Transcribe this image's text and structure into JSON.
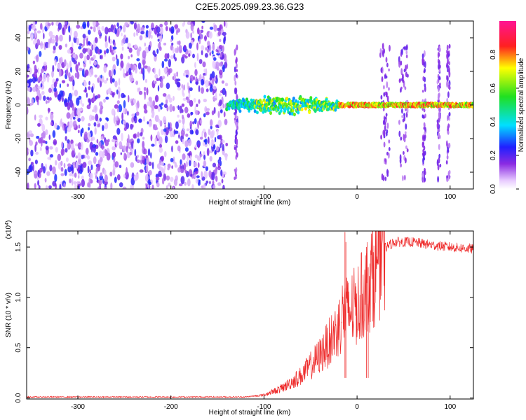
{
  "title": "C2E5.2025.099.23.36.G23",
  "chart_data": [
    {
      "type": "heatmap",
      "xlabel": "Height of straight line (km)",
      "ylabel": "Frequency (Hz)",
      "xlim": [
        -355,
        125
      ],
      "ylim": [
        -50,
        50
      ],
      "xticks": [
        -300,
        -200,
        -100,
        0,
        100
      ],
      "yticks": [
        -40,
        -20,
        0,
        20,
        40
      ],
      "colorbar": {
        "label": "Normalized spectral amplitude",
        "ticks": [
          0.0,
          0.2,
          0.4,
          0.6,
          0.8
        ],
        "tick_labels": [
          "0.0",
          "0.2",
          "0.4",
          "0.6",
          "0.8"
        ],
        "range": [
          0,
          1
        ],
        "colormap": "rainbow (purple-blue-cyan-green-yellow-red-magenta)"
      },
      "regions": [
        {
          "description": "broadband noise",
          "x_range": [
            -355,
            -140
          ],
          "freq_range": [
            -50,
            50
          ],
          "amplitude": 0.1
        },
        {
          "description": "signal band",
          "x_range": [
            -140,
            125
          ],
          "center_freq": 0,
          "half_width": [
            2,
            7
          ],
          "amplitude": [
            0.35,
            0.95
          ]
        },
        {
          "description": "vertical noise streaks",
          "x_values": [
            -130,
            30,
            50,
            72,
            88,
            98
          ],
          "amplitude": 0.15
        }
      ]
    },
    {
      "type": "line",
      "xlabel": "Height of straight line (km)",
      "ylabel": "SNR (10 * v/v)",
      "y_multiplier_label": "(x10",
      "y_multiplier_exp": "4",
      "y_multiplier_close": ")",
      "xlim": [
        -355,
        125
      ],
      "ylim": [
        -0.01,
        1.66
      ],
      "xticks": [
        -300,
        -200,
        -100,
        0,
        100
      ],
      "yticks": [
        0.0,
        0.5,
        1.0,
        1.5
      ],
      "ytick_labels": [
        "0.0",
        "0.5",
        "1.0",
        "1.5"
      ],
      "series": [
        {
          "color": "#ee2a2a",
          "x": [
            -355,
            -120,
            -100,
            -80,
            -60,
            -50,
            -40,
            -30,
            -20,
            -15,
            -10,
            0,
            10,
            20,
            28,
            40,
            60,
            80,
            100,
            125
          ],
          "y": [
            0.01,
            0.01,
            0.03,
            0.1,
            0.22,
            0.32,
            0.42,
            0.55,
            0.7,
            0.85,
            0.85,
            0.92,
            1.1,
            1.3,
            1.48,
            1.55,
            1.55,
            1.52,
            1.5,
            1.48
          ]
        }
      ],
      "spikes": [
        {
          "x": -13,
          "y": 1.65
        },
        {
          "x": -12,
          "y": 1.55
        },
        {
          "x": 10,
          "y": 1.5
        },
        {
          "x": 12,
          "y": 1.3
        }
      ]
    }
  ]
}
